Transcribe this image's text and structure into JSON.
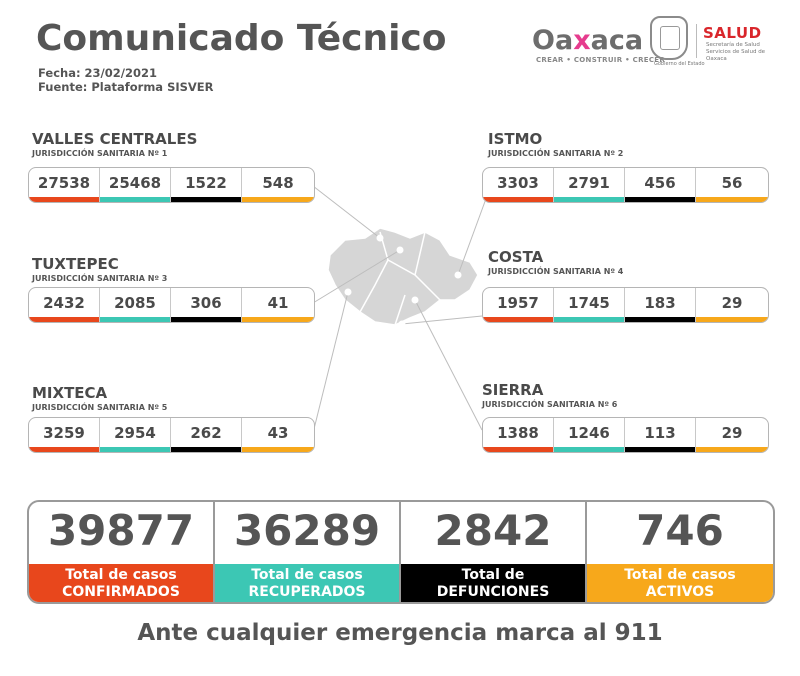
{
  "header": {
    "title": "Comunicado Técnico",
    "fecha": "Fecha: 23/02/2021",
    "fuente": "Fuente: Plataforma SISVER"
  },
  "logos": {
    "oaxaca_word_a": "Oa",
    "oaxaca_word_x": "x",
    "oaxaca_word_b": "aca",
    "oaxaca_tagline": "CREAR • CONSTRUIR • CRECER",
    "gobierno_caption": "Gobierno del Estado",
    "salud": "SALUD",
    "salud_sub": "Secretaría de Salud Servicios de Salud de Oaxaca"
  },
  "colors": {
    "confirmados": "#e8471c",
    "recuperados": "#3cc7b4",
    "defunciones": "#000000",
    "activos": "#f7a81b"
  },
  "regions": [
    {
      "name": "VALLES CENTRALES",
      "sub": "JURISDICCIÓN SANITARIA Nº 1",
      "values": [
        "27538",
        "25468",
        "1522",
        "548"
      ]
    },
    {
      "name": "TUXTEPEC",
      "sub": "JURISDICCIÓN SANITARIA Nº 3",
      "values": [
        "2432",
        "2085",
        "306",
        "41"
      ]
    },
    {
      "name": "MIXTECA",
      "sub": "JURISDICCIÓN SANITARIA Nº 5",
      "values": [
        "3259",
        "2954",
        "262",
        "43"
      ]
    },
    {
      "name": "ISTMO",
      "sub": "JURISDICCIÓN SANITARIA Nº 2",
      "values": [
        "3303",
        "2791",
        "456",
        "56"
      ]
    },
    {
      "name": "COSTA",
      "sub": "JURISDICCIÓN SANITARIA Nº 4",
      "values": [
        "1957",
        "1745",
        "183",
        "29"
      ]
    },
    {
      "name": "SIERRA",
      "sub": "JURISDICCIÓN SANITARIA Nº 6",
      "values": [
        "1388",
        "1246",
        "113",
        "29"
      ]
    }
  ],
  "totals": [
    {
      "value": "39877",
      "line1": "Total de casos",
      "line2": "CONFIRMADOS"
    },
    {
      "value": "36289",
      "line1": "Total de casos",
      "line2": "RECUPERADOS"
    },
    {
      "value": "2842",
      "line1": "Total de",
      "line2": "DEFUNCIONES"
    },
    {
      "value": "746",
      "line1": "Total de casos",
      "line2": "ACTIVOS"
    }
  ],
  "footer": "Ante cualquier emergencia marca al 911"
}
